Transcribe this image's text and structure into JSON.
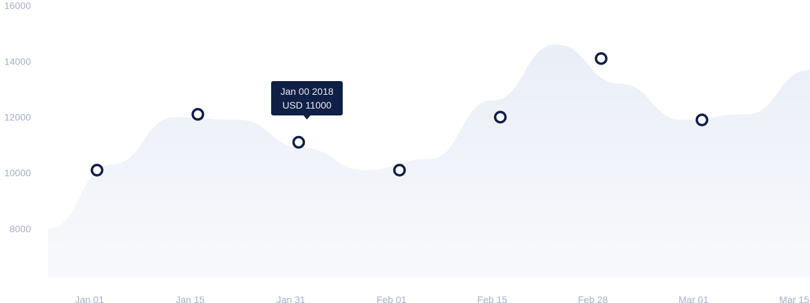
{
  "chart_data": {
    "type": "area",
    "title": "",
    "xlabel": "",
    "ylabel": "",
    "x_tick_labels": [
      "Jan 01",
      "Jan 15",
      "Jan 31",
      "Feb 01",
      "Feb 15",
      "Feb 28",
      "Mar 01",
      "Mar 15"
    ],
    "y_ticks": [
      8000,
      10000,
      12000,
      14000,
      16000
    ],
    "ylim": [
      6150,
      16150
    ],
    "grid": false,
    "series": [
      {
        "area_curve_values": [
          8000,
          10300,
          12000,
          11900,
          10900,
          10100,
          10500,
          12600,
          14600,
          13200,
          11900,
          12100,
          13700
        ],
        "marker_points": [
          10100,
          12100,
          11100,
          10100,
          12000,
          14100,
          11900
        ]
      }
    ],
    "colors": {
      "area_top": "#e9eef7",
      "area_bottom": "#f8f9fc",
      "marker_stroke": "#0f1f45",
      "tick_label": "#a6b0c8"
    },
    "tooltip": {
      "line1": "Jan 00 2018",
      "line2": "USD 11000"
    }
  }
}
